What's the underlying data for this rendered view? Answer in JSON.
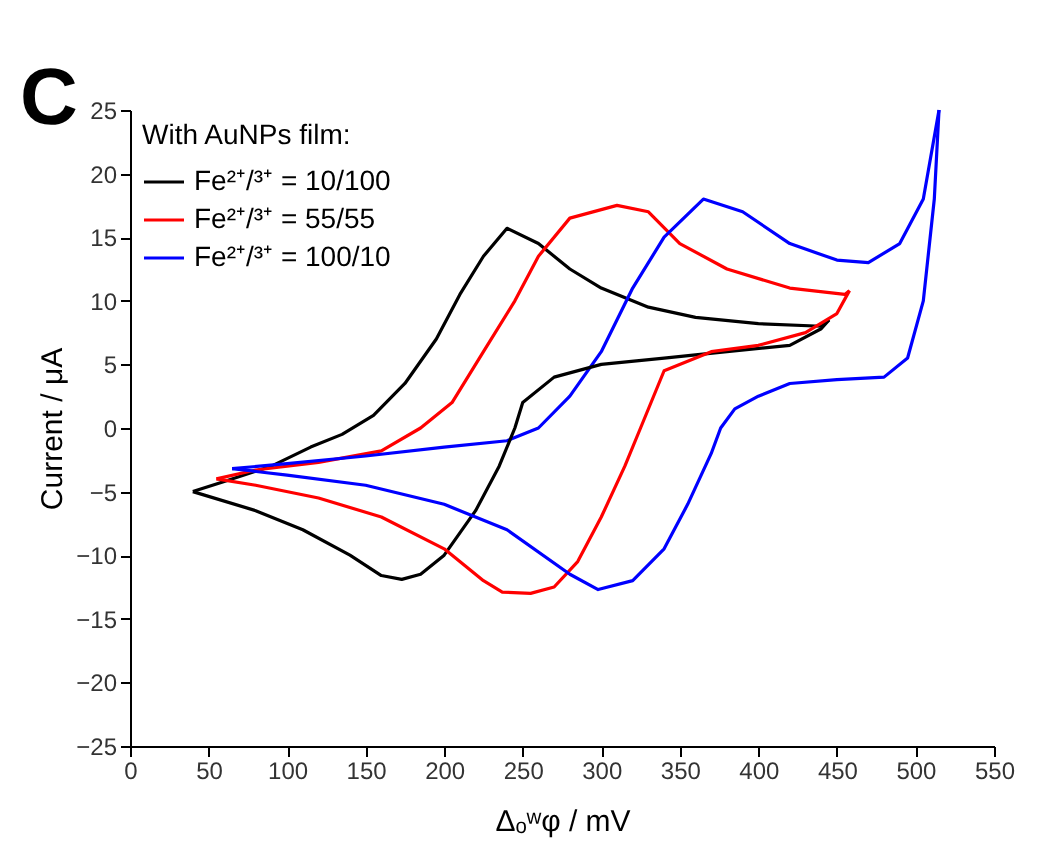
{
  "chart_data": {
    "type": "line",
    "xlabel": "Δₒʷφ / mV",
    "ylabel": "Current / μA",
    "legend_title": "With AuNPs film:",
    "annotations": [
      "C"
    ],
    "xlim": [
      0,
      550
    ],
    "xticks": [
      0,
      50,
      100,
      150,
      200,
      250,
      300,
      350,
      400,
      450,
      500,
      550
    ],
    "ylim": [
      -25,
      25
    ],
    "yticks": [
      -25,
      -20,
      -15,
      -10,
      -5,
      0,
      5,
      10,
      15,
      20,
      25
    ],
    "grid": false,
    "legend": "top left",
    "marker": "none",
    "line_style": "solid",
    "series": [
      {
        "name": "Fe²⁺/³⁺ = 10/100",
        "color": "#000000",
        "x": [
          40,
          60,
          90,
          115,
          135,
          155,
          175,
          195,
          210,
          225,
          240,
          260,
          280,
          300,
          330,
          360,
          400,
          440,
          445
        ],
        "values": [
          -5,
          -4.2,
          -3,
          -1.5,
          -0.5,
          1,
          3.5,
          7,
          10.5,
          13.5,
          15.7,
          14.5,
          12.5,
          11,
          9.5,
          8.7,
          8.2,
          8,
          8.5
        ]
      },
      {
        "name": "Fe²⁺/³⁺ = 55/55",
        "color": "#ff0000",
        "x": [
          55,
          80,
          120,
          160,
          185,
          205,
          225,
          245,
          260,
          280,
          310,
          330,
          350,
          380,
          420,
          455,
          458
        ],
        "values": [
          -4,
          -3.3,
          -2.7,
          -1.8,
          0,
          2,
          6,
          10,
          13.5,
          16.5,
          17.5,
          17,
          14.5,
          12.5,
          11,
          10.5,
          10.8
        ]
      },
      {
        "name": "Fe²⁺/³⁺ = 100/10",
        "color": "#0000ff",
        "x": [
          65,
          100,
          150,
          200,
          240,
          260,
          280,
          300,
          320,
          340,
          365,
          390,
          420,
          450,
          470,
          490,
          505,
          515
        ],
        "values": [
          -3.2,
          -2.8,
          -2.2,
          -1.5,
          -1,
          0,
          2.5,
          6,
          11,
          15,
          18,
          17,
          14.5,
          13.2,
          13,
          14.5,
          18,
          25
        ]
      },
      {
        "color": "#000000",
        "x": [
          40,
          80,
          110,
          140,
          160,
          173,
          185,
          200,
          220,
          235,
          245,
          250,
          270,
          300,
          340,
          380,
          420,
          440,
          445
        ],
        "values": [
          -5,
          -6.5,
          -8,
          -10,
          -11.6,
          -11.9,
          -11.5,
          -10,
          -6.5,
          -3,
          0,
          2,
          4,
          5,
          5.5,
          6,
          6.5,
          7.8,
          8.5
        ]
      },
      {
        "color": "#ff0000",
        "x": [
          55,
          80,
          120,
          160,
          200,
          225,
          237,
          255,
          270,
          285,
          300,
          315,
          325,
          340,
          370,
          400,
          430,
          450,
          458
        ],
        "values": [
          -4,
          -4.5,
          -5.5,
          -7,
          -9.5,
          -12,
          -12.9,
          -13,
          -12.5,
          -10.5,
          -7,
          -3,
          0,
          4.5,
          6,
          6.5,
          7.5,
          9,
          10.8
        ]
      },
      {
        "color": "#0000ff",
        "x": [
          65,
          100,
          150,
          200,
          240,
          280,
          298,
          320,
          340,
          355,
          370,
          376,
          385,
          400,
          420,
          450,
          480,
          495,
          505,
          512,
          515
        ],
        "values": [
          -3.2,
          -3.7,
          -4.5,
          -6,
          -8,
          -11.5,
          -12.7,
          -12,
          -9.5,
          -6,
          -2,
          0,
          1.5,
          2.5,
          3.5,
          3.8,
          4,
          5.5,
          10,
          18,
          25
        ]
      }
    ]
  }
}
